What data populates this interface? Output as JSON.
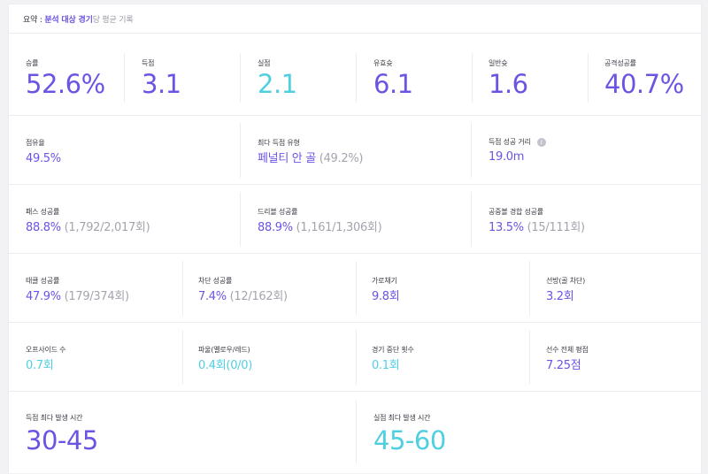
{
  "header": {
    "prefix": "요약 : ",
    "highlight": "분석 대상 경기",
    "suffix": "당 평균 기록"
  },
  "row1": [
    {
      "label": "승률",
      "value": "52.6%",
      "color": "#6b54e3"
    },
    {
      "label": "득점",
      "value": "3.1",
      "color": "#6b54e3"
    },
    {
      "label": "실점",
      "value": "2.1",
      "color": "#4fcfe0"
    },
    {
      "label": "유효슛",
      "value": "6.1",
      "color": "#6b54e3"
    },
    {
      "label": "일반슛",
      "value": "1.6",
      "color": "#6b54e3"
    },
    {
      "label": "공격성공률",
      "value": "40.7%",
      "color": "#6b54e3"
    }
  ],
  "row2": [
    {
      "label": "점유율",
      "value": "49.5%",
      "sub": ""
    },
    {
      "label": "최다 득점 유형",
      "value": "페널티 안 골",
      "sub": " (49.2%)"
    },
    {
      "label": "득점 성공 거리",
      "value": "19.0m",
      "sub": "",
      "info": "i"
    }
  ],
  "row3": [
    {
      "label": "패스 성공률",
      "value": "88.8%",
      "sub": " (1,792/2,017회)"
    },
    {
      "label": "드리블 성공률",
      "value": "88.9%",
      "sub": " (1,161/1,306회)"
    },
    {
      "label": "공중볼 경합 성공률",
      "value": "13.5%",
      "sub": " (15/111회)"
    }
  ],
  "row4": [
    {
      "label": "태클 성공률",
      "value": "47.9%",
      "sub": " (179/374회)"
    },
    {
      "label": "차단 성공률",
      "value": "7.4%",
      "sub": " (12/162회)"
    },
    {
      "label": "가로채기",
      "value": "9.8회",
      "sub": ""
    },
    {
      "label": "선방(골 차단)",
      "value": "3.2회",
      "sub": ""
    }
  ],
  "row5": [
    {
      "label": "오프사이드 수",
      "value": "0.7회",
      "color": "#4fcfe0"
    },
    {
      "label": "파울(옐로우/레드)",
      "value": "0.4회(0/0)",
      "color": "#4fcfe0"
    },
    {
      "label": "경기 중단 횟수",
      "value": "0.1회",
      "color": "#4fcfe0"
    },
    {
      "label": "선수 전체 평점",
      "value": "7.25점",
      "color": "#6b54e3"
    }
  ],
  "row6": [
    {
      "label": "득점 최다 발생 시간",
      "value": "30-45",
      "color": "#6b54e3"
    },
    {
      "label": "실점 최다 발생 시간",
      "value": "45-60",
      "color": "#4fcfe0"
    }
  ]
}
